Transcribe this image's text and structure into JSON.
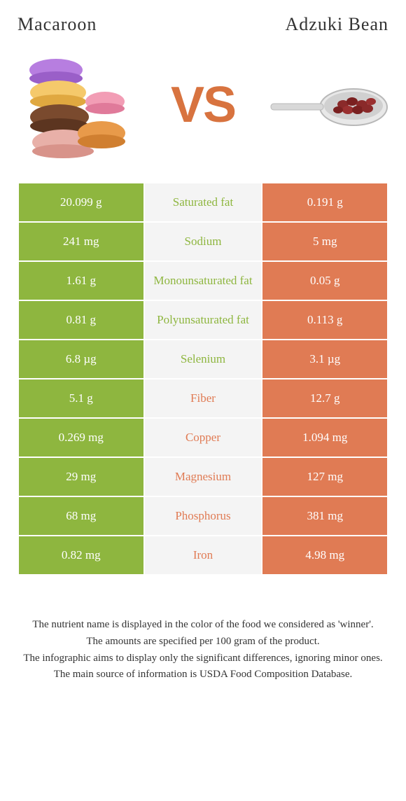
{
  "foods": {
    "left": {
      "name": "Macaroon",
      "color": "#8eb63f",
      "text_color": "#ffffff"
    },
    "right": {
      "name": "Adzuki Bean",
      "color": "#e07b54",
      "text_color": "#ffffff"
    }
  },
  "vs_label": "VS",
  "vs_color": "#d8733f",
  "mid_bg": "#f4f4f4",
  "rows": [
    {
      "nutrient": "Saturated fat",
      "left": "20.099 g",
      "right": "0.191 g",
      "winner": "left"
    },
    {
      "nutrient": "Sodium",
      "left": "241 mg",
      "right": "5 mg",
      "winner": "left"
    },
    {
      "nutrient": "Monounsaturated fat",
      "left": "1.61 g",
      "right": "0.05 g",
      "winner": "left"
    },
    {
      "nutrient": "Polyunsaturated fat",
      "left": "0.81 g",
      "right": "0.113 g",
      "winner": "left"
    },
    {
      "nutrient": "Selenium",
      "left": "6.8 µg",
      "right": "3.1 µg",
      "winner": "left"
    },
    {
      "nutrient": "Fiber",
      "left": "5.1 g",
      "right": "12.7 g",
      "winner": "right"
    },
    {
      "nutrient": "Copper",
      "left": "0.269 mg",
      "right": "1.094 mg",
      "winner": "right"
    },
    {
      "nutrient": "Magnesium",
      "left": "29 mg",
      "right": "127 mg",
      "winner": "right"
    },
    {
      "nutrient": "Phosphorus",
      "left": "68 mg",
      "right": "381 mg",
      "winner": "right"
    },
    {
      "nutrient": "Iron",
      "left": "0.82 mg",
      "right": "4.98 mg",
      "winner": "right"
    }
  ],
  "footnotes": [
    "The nutrient name is displayed in the color of the food we considered as 'winner'.",
    "The amounts are specified per 100 gram of the product.",
    "The infographic aims to display only the significant differences, ignoring minor ones.",
    "The main source of information is USDA Food Composition Database."
  ],
  "macaroon_colors": [
    "#b77ee0",
    "#f5c96b",
    "#f29db5",
    "#7a4a2e",
    "#e89a4a",
    "#e8b0a8"
  ],
  "bean_color": "#8a2a2a",
  "spoon_color": "#e8e8e8"
}
